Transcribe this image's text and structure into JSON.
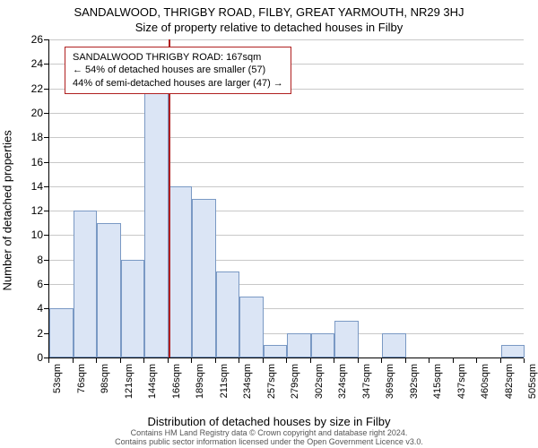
{
  "title_main": "SANDALWOOD, THRIGBY ROAD, FILBY, GREAT YARMOUTH, NR29 3HJ",
  "title_sub": "Size of property relative to detached houses in Filby",
  "y_axis_label": "Number of detached properties",
  "x_axis_label": "Distribution of detached houses by size in Filby",
  "footer_line1": "Contains HM Land Registry data © Crown copyright and database right 2024.",
  "footer_line2": "Contains public sector information licensed under the Open Government Licence v3.0.",
  "legend": {
    "line1": "SANDALWOOD THRIGBY ROAD: 167sqm",
    "line2": "← 54% of detached houses are smaller (57)",
    "line3": "44% of semi-detached houses are larger (47) →"
  },
  "chart": {
    "type": "histogram",
    "ylim": [
      0,
      26
    ],
    "ytick_step": 2,
    "xlim_sqm": [
      53,
      505
    ],
    "bar_color": "#dbe5f5",
    "bar_border_color": "#7a99c4",
    "grid_color": "#c8c8c8",
    "background_color": "#ffffff",
    "reference_line": {
      "value_sqm": 167,
      "color": "#b02020",
      "width": 2
    },
    "x_ticks": [
      "53sqm",
      "76sqm",
      "98sqm",
      "121sqm",
      "144sqm",
      "166sqm",
      "189sqm",
      "211sqm",
      "234sqm",
      "257sqm",
      "279sqm",
      "302sqm",
      "324sqm",
      "347sqm",
      "369sqm",
      "392sqm",
      "415sqm",
      "437sqm",
      "460sqm",
      "482sqm",
      "505sqm"
    ],
    "bars": [
      4,
      12,
      11,
      8,
      22,
      14,
      13,
      7,
      5,
      1,
      2,
      2,
      3,
      0,
      2,
      0,
      0,
      0,
      0,
      1
    ],
    "bar_width_ratio": 1.0,
    "title_fontsize": 13,
    "label_fontsize": 13,
    "tick_fontsize": 12,
    "xtick_fontsize": 11,
    "legend_border_color": "#b02020"
  }
}
